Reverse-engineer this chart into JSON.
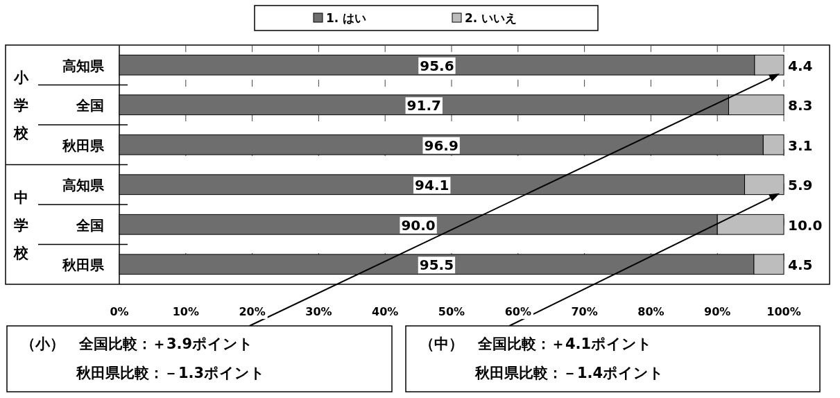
{
  "chart_data": {
    "type": "bar",
    "orientation": "horizontal",
    "stacked": true,
    "legend": "top",
    "grid": "x",
    "categories": [
      "高知県",
      "全国",
      "秋田県",
      "高知県",
      "全国",
      "秋田県"
    ],
    "series": [
      {
        "name": "1. はい",
        "color": "#6e6e6e",
        "values": [
          95.6,
          91.7,
          96.9,
          94.1,
          90.0,
          95.5
        ],
        "value_labels": [
          "95.6",
          "91.7",
          "96.9",
          "94.1",
          "90.0",
          "95.5"
        ]
      },
      {
        "name": "2. いいえ",
        "color": "#bdbdbd",
        "values": [
          4.4,
          8.3,
          3.1,
          5.9,
          10.0,
          4.5
        ],
        "value_labels": [
          "4.4",
          "8.3",
          "3.1",
          "5.9",
          "10.0",
          "4.5"
        ]
      }
    ],
    "xlim": [
      0,
      100
    ],
    "xticks": [
      {
        "value": 0,
        "label": "0%"
      },
      {
        "value": 10,
        "label": "10%"
      },
      {
        "value": 20,
        "label": "20%"
      },
      {
        "value": 30,
        "label": "30%"
      },
      {
        "value": 40,
        "label": "40%"
      },
      {
        "value": 50,
        "label": "50%"
      },
      {
        "value": 60,
        "label": "60%"
      },
      {
        "value": 70,
        "label": "70%"
      },
      {
        "value": 80,
        "label": "80%"
      },
      {
        "value": 90,
        "label": "90%"
      },
      {
        "value": 100,
        "label": "100%"
      }
    ],
    "annotations": [
      "小学校",
      "中学校",
      "（小）　全国比較：＋3.9ポイント",
      "秋田県比較：－1.3ポイント",
      "（中）　全国比較：＋4.1ポイント",
      "秋田県比較：－1.4ポイント"
    ]
  }
}
